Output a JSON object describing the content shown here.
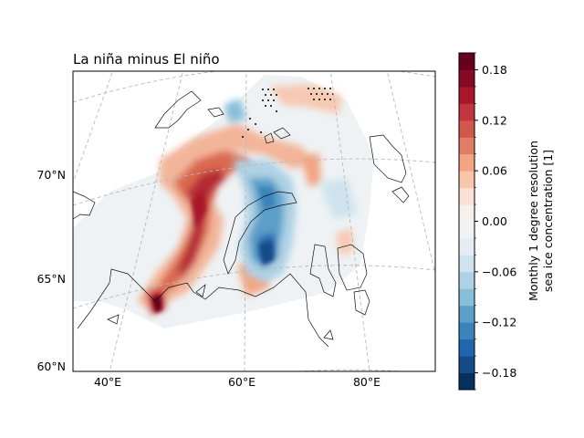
{
  "title": "La niña minus El niño",
  "lat_labels": [
    "70°N",
    "65°N",
    "60°N"
  ],
  "lon_labels": [
    "40°E",
    "60°E",
    "80°E"
  ],
  "colorbar": {
    "label_line1": "Monthly 1 degree resolution",
    "label_line2": "sea ice concentration [1]",
    "ticks": [
      "0.18",
      "0.12",
      "0.06",
      "0.00",
      "−0.06",
      "−0.12",
      "−0.18"
    ],
    "vmin": -0.2,
    "vmax": 0.2,
    "colormap": "RdBu_r",
    "colors": [
      "#053061",
      "#134b87",
      "#2066ac",
      "#3a84bb",
      "#5b9fc9",
      "#87beda",
      "#aed2e5",
      "#cfe3ee",
      "#e3edf3",
      "#f0f3f5",
      "#f7efeb",
      "#fbe1d5",
      "#f9c5ab",
      "#f3a582",
      "#e17d65",
      "#d0574b",
      "#c0363c",
      "#aa1529",
      "#860a23",
      "#67001f"
    ]
  },
  "map": {
    "projection": "Lambert conformal",
    "region": "Barents and Kara Seas",
    "gridlines": "dashed grey"
  }
}
